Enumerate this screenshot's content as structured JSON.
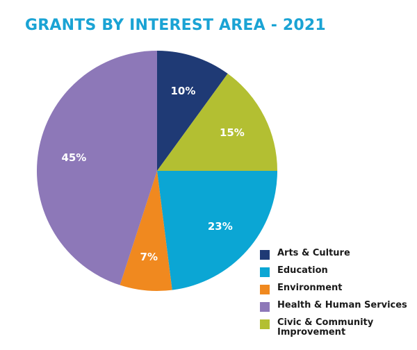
{
  "chart_data": {
    "type": "pie",
    "title": "GRANTS BY INTEREST AREA - 2021",
    "series": [
      {
        "categories": [
          "Arts & Culture",
          "Civic & Community Improvement",
          "Education",
          "Environment",
          "Health & Human Services"
        ],
        "values": [
          10,
          15,
          23,
          7,
          45
        ],
        "data_labels": [
          "10%",
          "15%",
          "23%",
          "7%",
          "45%"
        ],
        "colors": [
          "#1f3a75",
          "#b3bf32",
          "#0ba6d4",
          "#f0891f",
          "#8d78b8"
        ]
      }
    ],
    "legend": {
      "placement": "bottom-right",
      "entries": [
        {
          "label": "Arts & Culture",
          "color": "#1f3a75"
        },
        {
          "label": "Education",
          "color": "#0ba6d4"
        },
        {
          "label": "Environment",
          "color": "#f0891f"
        },
        {
          "label": "Health & Human Services",
          "color": "#8d78b8"
        },
        {
          "label": "Civic & Community Improvement",
          "color": "#b3bf32"
        }
      ]
    }
  }
}
